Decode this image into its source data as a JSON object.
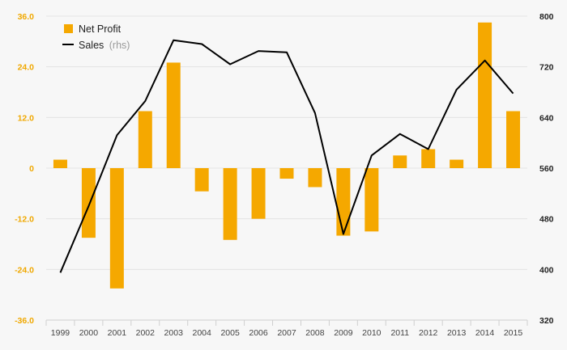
{
  "chart_data": {
    "type": "bar",
    "categories": [
      "1999",
      "2000",
      "2001",
      "2002",
      "2003",
      "2004",
      "2005",
      "2006",
      "2007",
      "2008",
      "2009",
      "2010",
      "2011",
      "2012",
      "2013",
      "2014",
      "2015"
    ],
    "series": [
      {
        "name": "Net Profit",
        "type": "bar",
        "axis": "left",
        "color": "#f5a800",
        "values": [
          2.0,
          -16.5,
          -28.5,
          13.5,
          25.0,
          -5.5,
          -17.0,
          -12.0,
          -2.5,
          -4.5,
          -16.0,
          -15.0,
          3.0,
          4.5,
          2.0,
          34.5,
          13.5
        ]
      },
      {
        "name": "Sales",
        "name_suffix": "(rhs)",
        "type": "line",
        "axis": "right",
        "color": "#000000",
        "values": [
          395,
          500,
          612,
          666,
          762,
          756,
          724,
          745,
          743,
          647,
          456,
          580,
          614,
          590,
          684,
          730,
          678
        ]
      }
    ],
    "y_left": {
      "ticks": [
        "36.0",
        "24.0",
        "12.0",
        "0",
        "-12.0",
        "-24.0",
        "-36.0"
      ],
      "ylim": [
        -36,
        36
      ],
      "color": "#f0a800"
    },
    "y_right": {
      "ticks": [
        "800",
        "720",
        "640",
        "560",
        "480",
        "400",
        "320"
      ],
      "ylim": [
        320,
        800
      ]
    },
    "grid": true,
    "legend": "top-left"
  }
}
